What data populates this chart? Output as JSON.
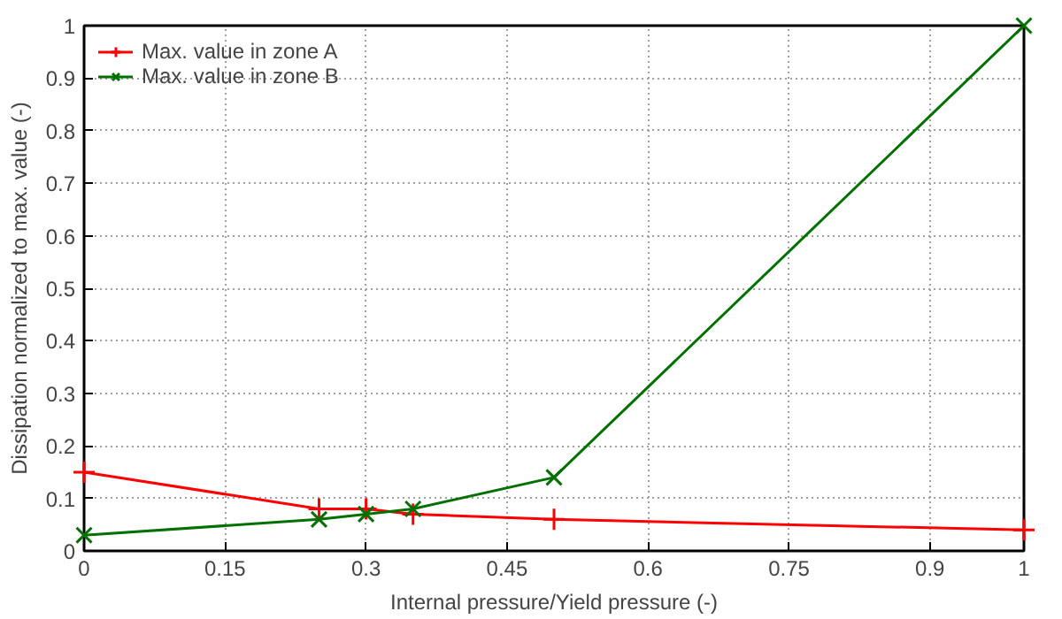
{
  "chart_data": {
    "type": "line",
    "xlabel": "Internal pressure/Yield pressure (-)",
    "ylabel": "Dissipation normalized to max. value (-)",
    "x": [
      0,
      0.25,
      0.3,
      0.35,
      0.5,
      1
    ],
    "series": [
      {
        "name": "Max. value in zone A",
        "color": "#ff0000",
        "marker": "cross",
        "values": [
          0.15,
          0.08,
          0.08,
          0.07,
          0.06,
          0.04
        ]
      },
      {
        "name": "Max. value in zone B",
        "color": "#007000",
        "marker": "x",
        "values": [
          0.03,
          0.06,
          0.07,
          0.08,
          0.14,
          1
        ]
      }
    ],
    "xlim": [
      0,
      1
    ],
    "ylim": [
      0,
      1
    ],
    "xticks": [
      0,
      0.15,
      0.3,
      0.45,
      0.6,
      0.75,
      0.9,
      1
    ],
    "yticks": [
      0,
      0.1,
      0.2,
      0.3,
      0.4,
      0.5,
      0.6,
      0.7,
      0.8,
      0.9,
      1
    ],
    "grid": true,
    "legend": "top left",
    "line_style": "solid"
  }
}
